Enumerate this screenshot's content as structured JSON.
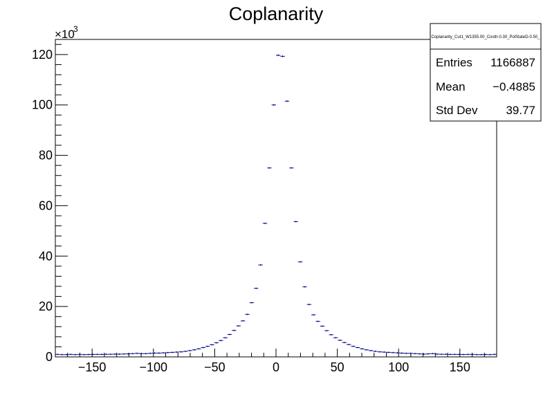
{
  "chart_data": {
    "type": "histogram",
    "title": "Coplanarity",
    "xlabel": "",
    "ylabel": "",
    "xlim": [
      -180,
      180
    ],
    "ylim": [
      0,
      126000
    ],
    "y_multiplier_label": "×10",
    "y_multiplier_exponent": "3",
    "x_ticks": [
      -150,
      -100,
      -50,
      0,
      50,
      100,
      150
    ],
    "x_tick_labels": [
      "−150",
      "−100",
      "−50",
      "0",
      "50",
      "100",
      "150"
    ],
    "y_ticks": [
      0,
      20000,
      40000,
      60000,
      80000,
      100000,
      120000
    ],
    "y_tick_labels": [
      "0",
      "20",
      "40",
      "60",
      "80",
      "100",
      "120"
    ],
    "grid": false,
    "bin_width": 3.6,
    "series": [
      {
        "x": [
          -178.2,
          -174.6,
          -171,
          -167.4,
          -163.8,
          -160.2,
          -156.6,
          -153,
          -149.4,
          -145.8,
          -142.2,
          -138.6,
          -135,
          -131.4,
          -127.8,
          -124.2,
          -120.6,
          -117,
          -113.4,
          -109.8,
          -106.2,
          -102.6,
          -99,
          -95.4,
          -91.8,
          -88.2,
          -84.6,
          -81,
          -77.4,
          -73.8,
          -70.2,
          -66.6,
          -63,
          -59.4,
          -55.8,
          -52.2,
          -48.6,
          -45,
          -41.4,
          -37.8,
          -34.2,
          -30.6,
          -27,
          -23.4,
          -19.8,
          -16.2,
          -12.6,
          -9,
          -5.4,
          -1.8,
          1.8,
          5.4,
          9,
          12.6,
          16.2,
          19.8,
          23.4,
          27,
          30.6,
          34.2,
          37.8,
          41.4,
          45,
          48.6,
          52.2,
          55.8,
          59.4,
          63,
          66.6,
          70.2,
          73.8,
          77.4,
          81,
          84.6,
          88.2,
          91.8,
          95.4,
          99,
          102.6,
          106.2,
          109.8,
          113.4,
          117,
          120.6,
          124.2,
          127.8,
          131.4,
          135,
          138.6,
          142.2,
          145.8,
          149.4,
          153,
          156.6,
          160.2,
          163.8,
          167.4,
          171,
          174.6,
          178.2
        ],
        "y": [
          1000,
          900,
          900,
          1000,
          900,
          1000,
          900,
          950,
          1000,
          1000,
          1000,
          1050,
          1050,
          1100,
          1100,
          1150,
          1200,
          1300,
          1400,
          1300,
          1300,
          1400,
          1500,
          1500,
          1600,
          1700,
          1800,
          1900,
          2000,
          2200,
          2500,
          2800,
          3200,
          3700,
          4200,
          4800,
          5600,
          6500,
          7600,
          8900,
          10500,
          12300,
          14300,
          16900,
          21500,
          27200,
          36500,
          53000,
          75000,
          100000,
          119700,
          119300,
          101500,
          75000,
          53700,
          37700,
          27800,
          20800,
          16700,
          14100,
          12200,
          10400,
          8800,
          7600,
          6600,
          5700,
          4900,
          4200,
          3700,
          3200,
          2800,
          2500,
          2200,
          2000,
          1900,
          1800,
          1700,
          1600,
          1500,
          1400,
          1400,
          1300,
          1200,
          1100,
          1200,
          1300,
          1100,
          1050,
          1050,
          1000,
          1000,
          1000,
          950,
          1000,
          1000,
          900,
          900,
          950,
          900,
          1000
        ]
      }
    ],
    "stats": {
      "title": "Coplanarity_Cut1_W1355.00_Costh-0.30_PolStateD-0.50_",
      "rows": [
        {
          "name": "Entries",
          "value": "1166887"
        },
        {
          "name": "Mean",
          "value": "−0.4885"
        },
        {
          "name": "Std Dev",
          "value": "39.77"
        }
      ]
    },
    "colors": {
      "marker": "#00008b",
      "axis": "#000000",
      "background": "#ffffff"
    }
  }
}
